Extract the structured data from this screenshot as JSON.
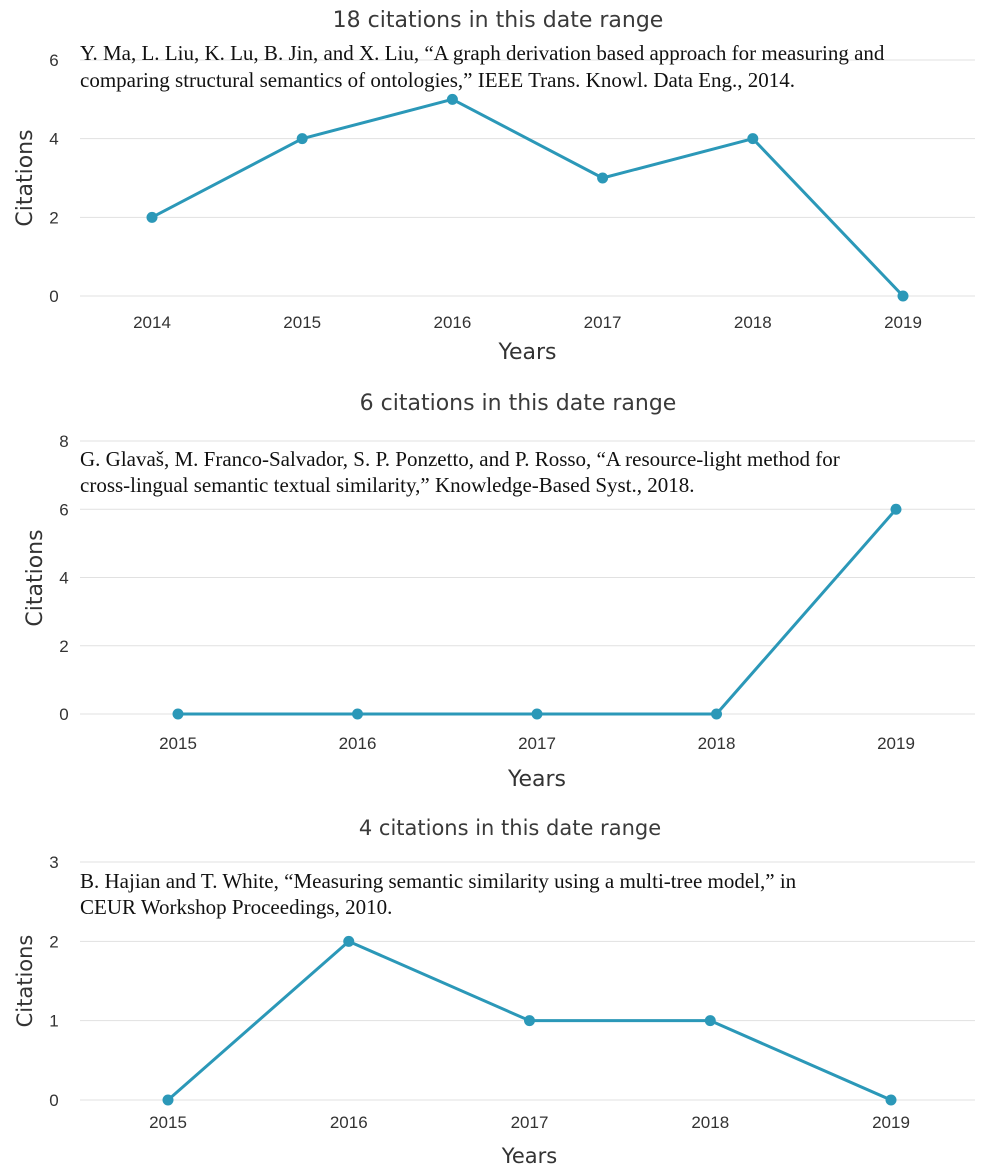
{
  "colors": {
    "series": "#2b98b8",
    "grid": "#e1e1e1",
    "text": "#333333"
  },
  "chart_data": [
    {
      "type": "line",
      "title": "18 citations in this date range",
      "reference": [
        "Y. Ma, L. Liu, K. Lu, B. Jin, and X. Liu, “A graph derivation based approach for measuring and",
        "comparing structural semantics of ontologies,” IEEE Trans. Knowl. Data Eng., 2014."
      ],
      "xlabel": "Years",
      "ylabel": "Citations",
      "categories": [
        "2014",
        "2015",
        "2016",
        "2017",
        "2018",
        "2019"
      ],
      "values": [
        2,
        4,
        5,
        3,
        4,
        0
      ],
      "ylim": [
        0,
        6
      ],
      "yticks": [
        "0",
        "2",
        "4",
        "6"
      ],
      "grid": true
    },
    {
      "type": "line",
      "title": "6 citations in this date range",
      "reference": [
        "G. Glavaš, M. Franco-Salvador, S. P. Ponzetto, and P. Rosso, “A resource-light method for",
        "cross-lingual semantic textual similarity,” Knowledge-Based Syst., 2018."
      ],
      "xlabel": "Years",
      "ylabel": "Citations",
      "categories": [
        "2015",
        "2016",
        "2017",
        "2018",
        "2019"
      ],
      "values": [
        0,
        0,
        0,
        0,
        6
      ],
      "ylim": [
        0,
        8
      ],
      "yticks": [
        "0",
        "2",
        "4",
        "6",
        "8"
      ],
      "grid": true
    },
    {
      "type": "line",
      "title": "4 citations in this date range",
      "reference": [
        "B. Hajian and T. White, “Measuring semantic similarity using a multi-tree model,” in",
        "CEUR Workshop Proceedings, 2010."
      ],
      "xlabel": "Years",
      "ylabel": "Citations",
      "categories": [
        "2015",
        "2016",
        "2017",
        "2018",
        "2019"
      ],
      "values": [
        0,
        2,
        1,
        1,
        0
      ],
      "ylim": [
        0,
        3
      ],
      "yticks": [
        "0",
        "1",
        "2",
        "3"
      ],
      "grid": true
    }
  ]
}
